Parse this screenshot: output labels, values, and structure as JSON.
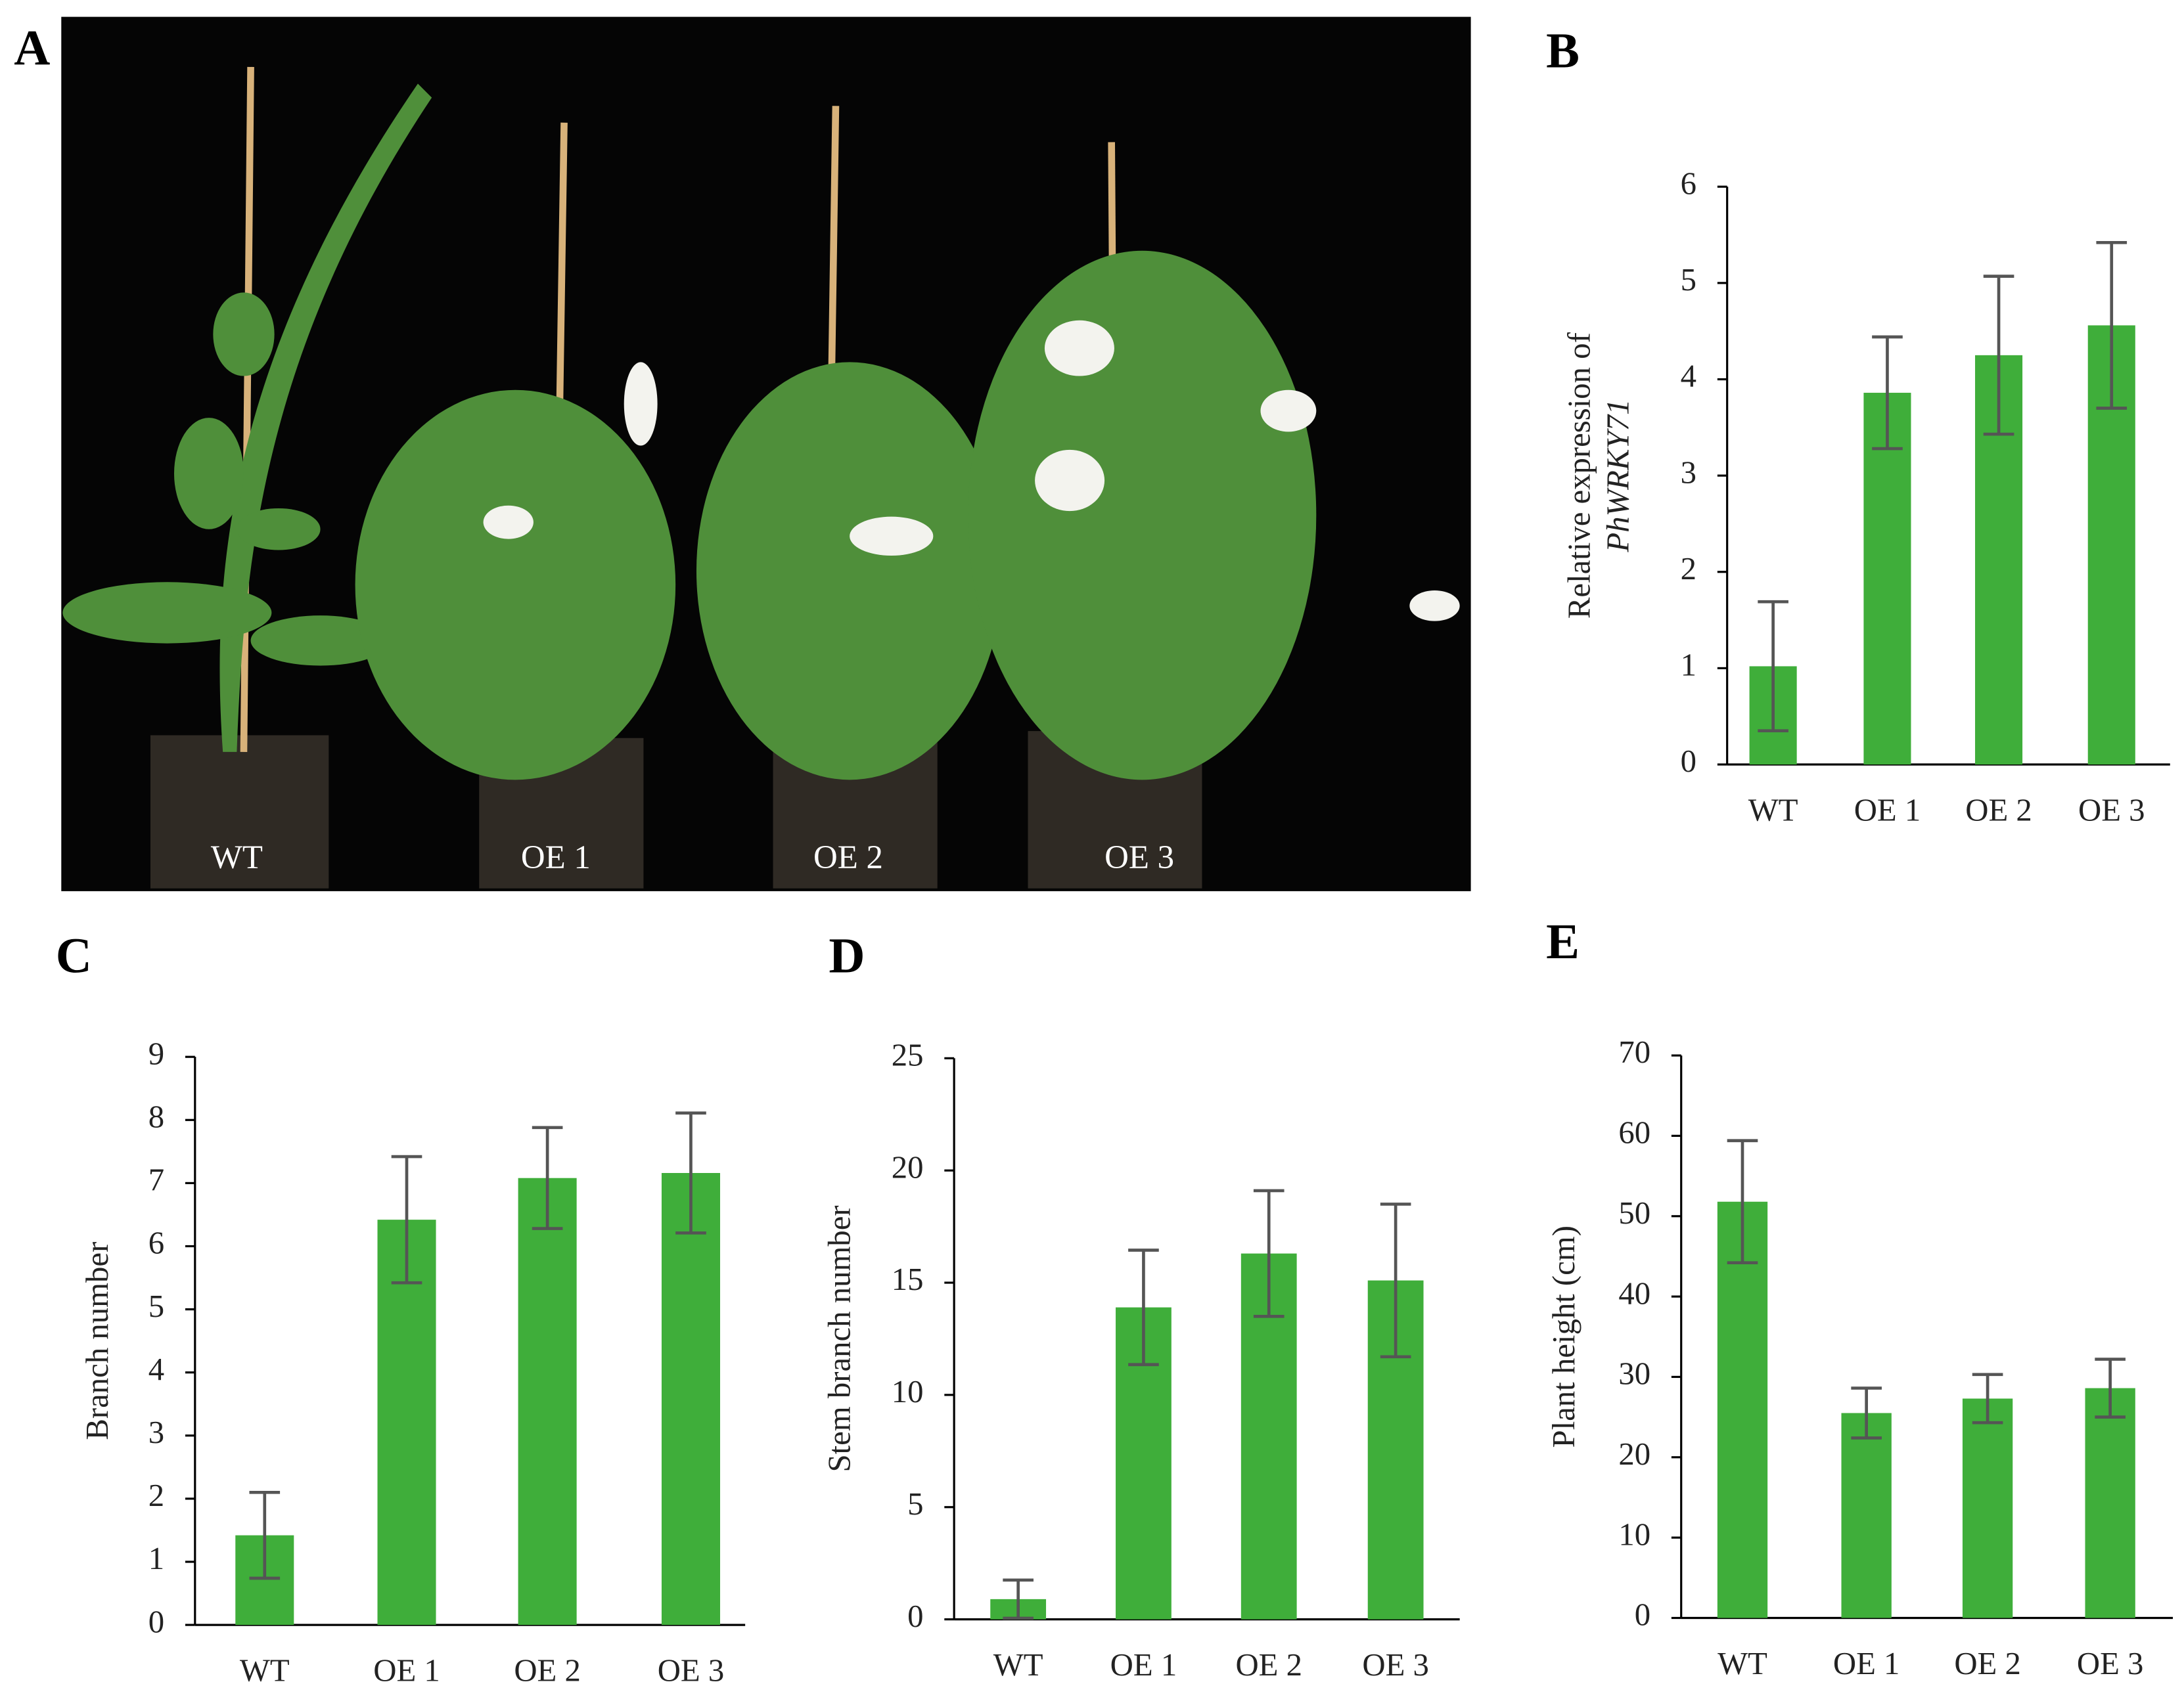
{
  "photo": {
    "label": "A",
    "plant_labels": [
      "WT",
      "OE 1",
      "OE 2",
      "OE 3"
    ]
  },
  "chart_data": [
    {
      "type": "bar",
      "label": "B",
      "ylabel": [
        "Relative expression of",
        "PhWRKY71"
      ],
      "categories": [
        "WT",
        "OE 1",
        "OE 2",
        "OE 3"
      ],
      "values": [
        1.02,
        3.86,
        4.25,
        4.56
      ],
      "errors": [
        0.67,
        0.58,
        0.82,
        0.86
      ],
      "color": "#3fae3a",
      "ylim": [
        0,
        6
      ],
      "yticks": [
        0,
        1,
        2,
        3,
        4,
        5,
        6
      ]
    },
    {
      "type": "bar",
      "label": "C",
      "ylabel": [
        "Branch number"
      ],
      "categories": [
        "WT",
        "OE 1",
        "OE 2",
        "OE 3"
      ],
      "values": [
        1.42,
        6.42,
        7.08,
        7.16
      ],
      "errors": [
        0.68,
        1.0,
        0.8,
        0.95
      ],
      "color": "#3fae3a",
      "ylim": [
        0,
        9
      ],
      "yticks": [
        0,
        1,
        2,
        3,
        4,
        5,
        6,
        7,
        8,
        9
      ]
    },
    {
      "type": "bar",
      "label": "D",
      "ylabel": [
        "Stem branch number"
      ],
      "categories": [
        "WT",
        "OE 1",
        "OE 2",
        "OE 3"
      ],
      "values": [
        0.9,
        13.9,
        16.3,
        15.1
      ],
      "errors": [
        0.85,
        2.55,
        2.8,
        3.4
      ],
      "color": "#3fae3a",
      "ylim": [
        0,
        25
      ],
      "yticks": [
        0,
        5,
        10,
        15,
        20,
        25
      ]
    },
    {
      "type": "bar",
      "label": "E",
      "ylabel": [
        "Plant height (cm)"
      ],
      "categories": [
        "WT",
        "OE 1",
        "OE 2",
        "OE 3"
      ],
      "values": [
        51.8,
        25.5,
        27.3,
        28.6
      ],
      "errors": [
        7.6,
        3.1,
        3.0,
        3.6
      ],
      "color": "#3fae3a",
      "ylim": [
        0,
        70
      ],
      "yticks": [
        0,
        10,
        20,
        30,
        40,
        50,
        60,
        70
      ]
    }
  ]
}
